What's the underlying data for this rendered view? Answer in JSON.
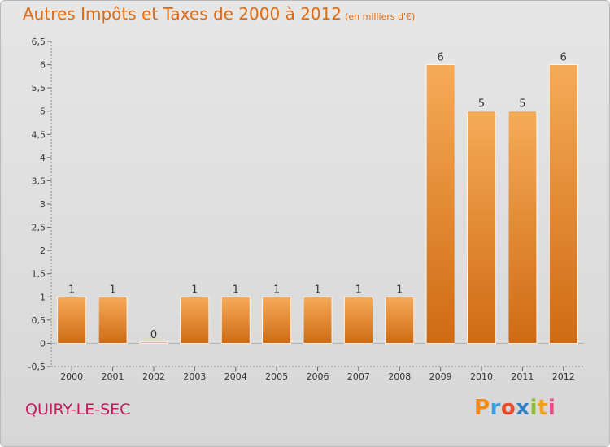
{
  "header": {
    "title": "Autres Impôts et Taxes de 2000 à 2012",
    "subtitle": "(en milliers d'€)"
  },
  "footer": {
    "commune": "QUIRY-LE-SEC",
    "logo": [
      "P",
      "r",
      "o",
      "x",
      "i",
      "t",
      "i"
    ],
    "logo_colors": [
      "#f08a18",
      "#3aa0dd",
      "#e84a2a",
      "#2f7fc4",
      "#8dbd2e",
      "#f0a21c",
      "#e84a8a"
    ]
  },
  "colors": {
    "bar": "#f09a3e",
    "bar_top": "#f6ab58",
    "bar_bottom": "#cf6a14",
    "title": "#e06a10",
    "commune": "#c21a5d"
  },
  "chart_data": {
    "type": "bar",
    "categories": [
      "2000",
      "2001",
      "2002",
      "2003",
      "2004",
      "2005",
      "2006",
      "2007",
      "2008",
      "2009",
      "2010",
      "2011",
      "2012"
    ],
    "values": [
      1,
      1,
      0,
      1,
      1,
      1,
      1,
      1,
      1,
      6,
      5,
      5,
      6
    ],
    "data_labels": [
      "1",
      "1",
      "0",
      "1",
      "1",
      "1",
      "1",
      "1",
      "1",
      "6",
      "5",
      "5",
      "6"
    ],
    "title": "Autres Impôts et Taxes de 2000 à 2012",
    "ylim": [
      -0.5,
      6.5
    ],
    "yticks": [
      "-0,5",
      "0",
      "0,5",
      "1",
      "1,5",
      "2",
      "2,5",
      "3",
      "3,5",
      "4",
      "4,5",
      "5",
      "5,5",
      "6",
      "6,5"
    ],
    "grid": false
  }
}
